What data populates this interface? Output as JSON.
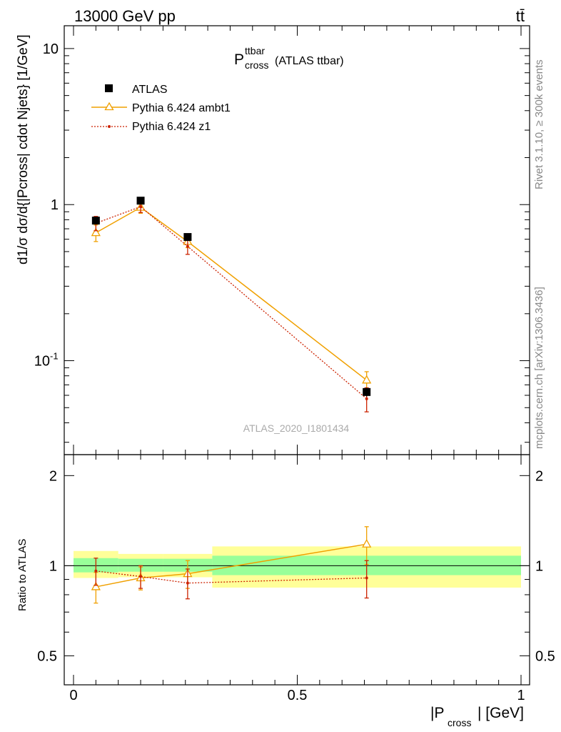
{
  "header": {
    "left": "13000 GeV pp",
    "right": "tt̄"
  },
  "plot_title": {
    "main": "P",
    "sup": "ttbar",
    "sub": "cross",
    "suffix": "(ATLAS ttbar)"
  },
  "side_labels": {
    "rivet": "Rivet 3.1.10, ≥ 300k events",
    "mcplots": "mcplots.cern.ch [arXiv:1306.3436]"
  },
  "watermark": "ATLAS_2020_I1801434",
  "ylabel_main": "d1/σ dσ/d{|Pcross| cdot Njets} [1/GeV]",
  "ylabel_ratio": "Ratio to ATLAS",
  "xlabel": {
    "main": "|P",
    "sub": "cross",
    "suffix": "| [GeV]"
  },
  "legend": [
    {
      "label": "ATLAS",
      "marker": "square",
      "color": "#000000",
      "style": "marker"
    },
    {
      "label": "Pythia 6.424 ambt1",
      "marker": "triangle",
      "color": "#f0a000",
      "style": "solid"
    },
    {
      "label": "Pythia 6.424 z1",
      "marker": "dot",
      "color": "#cc2200",
      "style": "dotted"
    }
  ],
  "chart_data": [
    {
      "type": "scatter",
      "panel": "main",
      "title": "P_cross^ttbar (ATLAS ttbar)",
      "xlim": [
        0,
        1
      ],
      "ylim": [
        0.025,
        14
      ],
      "yscale": "log",
      "xticks": [
        "0",
        "0.5",
        "1"
      ],
      "yticks": [
        "10^-1",
        "1",
        "10"
      ],
      "series": [
        {
          "name": "ATLAS",
          "x": [
            0.05,
            0.15,
            0.255,
            0.655
          ],
          "y": [
            0.79,
            1.06,
            0.62,
            0.063
          ],
          "yerr": [
            0.04,
            0.05,
            0.03,
            0.004
          ]
        },
        {
          "name": "Pythia 6.424 ambt1",
          "x": [
            0.05,
            0.15,
            0.255,
            0.655
          ],
          "y": [
            0.66,
            0.96,
            0.58,
            0.075
          ],
          "yerr": [
            0.08,
            0.08,
            0.05,
            0.01
          ]
        },
        {
          "name": "Pythia 6.424 z1",
          "x": [
            0.05,
            0.15,
            0.255,
            0.655
          ],
          "y": [
            0.76,
            0.97,
            0.54,
            0.057
          ],
          "yerr": [
            0.08,
            0.08,
            0.06,
            0.01
          ]
        }
      ]
    },
    {
      "type": "scatter",
      "panel": "ratio",
      "xlim": [
        0,
        1
      ],
      "ylim": [
        0.4,
        2.35
      ],
      "yscale": "log",
      "yticks": [
        "0.5",
        "1",
        "2"
      ],
      "bands": [
        {
          "x0": 0.0,
          "x1": 0.1,
          "inner": [
            0.95,
            1.06
          ],
          "outer": [
            0.91,
            1.12
          ]
        },
        {
          "x0": 0.1,
          "x1": 0.2,
          "inner": [
            0.955,
            1.055
          ],
          "outer": [
            0.915,
            1.095
          ]
        },
        {
          "x0": 0.2,
          "x1": 0.31,
          "inner": [
            0.955,
            1.055
          ],
          "outer": [
            0.915,
            1.095
          ]
        },
        {
          "x0": 0.31,
          "x1": 1.0,
          "inner": [
            0.93,
            1.08
          ],
          "outer": [
            0.845,
            1.16
          ]
        }
      ],
      "series": [
        {
          "name": "Pythia 6.424 ambt1",
          "x": [
            0.05,
            0.15,
            0.255,
            0.655
          ],
          "y": [
            0.85,
            0.91,
            0.94,
            1.18
          ],
          "yerr": [
            0.1,
            0.08,
            0.1,
            0.17
          ]
        },
        {
          "name": "Pythia 6.424 z1",
          "x": [
            0.05,
            0.15,
            0.255,
            0.655
          ],
          "y": [
            0.96,
            0.92,
            0.875,
            0.91
          ],
          "yerr": [
            0.1,
            0.08,
            0.1,
            0.13
          ]
        }
      ]
    }
  ]
}
